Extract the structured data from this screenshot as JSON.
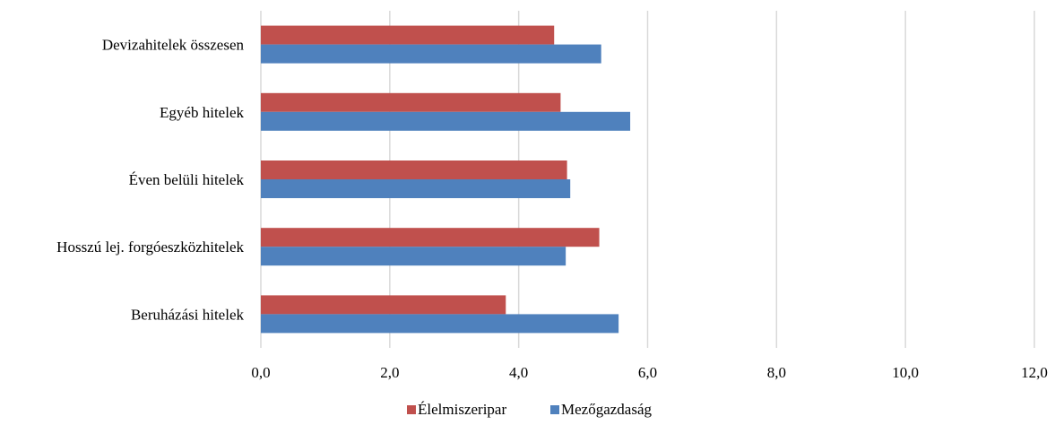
{
  "chart_data": {
    "type": "bar",
    "orientation": "horizontal",
    "categories": [
      "Devizahitelek összesen",
      "Egyéb hitelek",
      "Éven belüli hitelek",
      "Hosszú lej. forgóeszközhitelek",
      "Beruházási hitelek"
    ],
    "series": [
      {
        "name": "Élelmiszeripar",
        "color": "#c0504d",
        "values": [
          4.55,
          4.65,
          4.75,
          5.25,
          3.8
        ]
      },
      {
        "name": "Mezőgazdaság",
        "color": "#4f81bd",
        "values": [
          5.28,
          5.73,
          4.8,
          4.73,
          5.55
        ]
      }
    ],
    "x_ticks": [
      "0,0",
      "2,0",
      "4,0",
      "6,0",
      "8,0",
      "10,0",
      "12,0"
    ],
    "xlim": [
      0,
      12
    ],
    "grid": "vertical",
    "legend_position": "bottom"
  }
}
